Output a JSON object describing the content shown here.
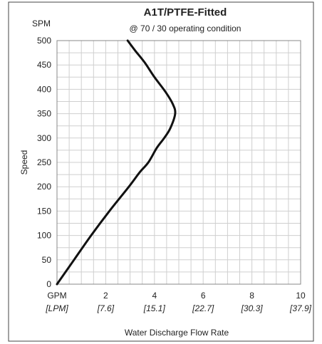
{
  "chart_data": {
    "type": "line",
    "title": "A1T/PTFE-Fitted",
    "subtitle": "@ 70 / 30 operating condition",
    "y_unit_label": "SPM",
    "ylabel": "Speed",
    "xlabel": "Water Discharge Flow Rate",
    "x_unit_label": "GPM",
    "x_secondary_unit_label": "[LPM]",
    "xlim": [
      0,
      10
    ],
    "ylim": [
      0,
      500
    ],
    "x_ticks": [
      {
        "value": 2,
        "label": "2",
        "secondary": "[7.6]"
      },
      {
        "value": 4,
        "label": "4",
        "secondary": "[15.1]"
      },
      {
        "value": 6,
        "label": "6",
        "secondary": "[22.7]"
      },
      {
        "value": 8,
        "label": "8",
        "secondary": "[30.3]"
      },
      {
        "value": 10,
        "label": "10",
        "secondary": "[37.9]"
      }
    ],
    "y_ticks": [
      0,
      50,
      100,
      150,
      200,
      250,
      300,
      350,
      400,
      450,
      500
    ],
    "grid": true,
    "grid_minor_x_step": 0.5,
    "grid_minor_y_step": 25,
    "series": [
      {
        "color": "#111111",
        "points": [
          [
            0.0,
            0
          ],
          [
            0.7,
            50
          ],
          [
            1.4,
            100
          ],
          [
            2.15,
            150
          ],
          [
            2.95,
            200
          ],
          [
            3.4,
            230
          ],
          [
            3.75,
            250
          ],
          [
            4.1,
            280
          ],
          [
            4.4,
            300
          ],
          [
            4.65,
            320
          ],
          [
            4.85,
            350
          ],
          [
            4.75,
            370
          ],
          [
            4.45,
            395
          ],
          [
            4.0,
            425
          ],
          [
            3.6,
            455
          ],
          [
            3.2,
            480
          ],
          [
            2.9,
            500
          ]
        ]
      }
    ]
  }
}
